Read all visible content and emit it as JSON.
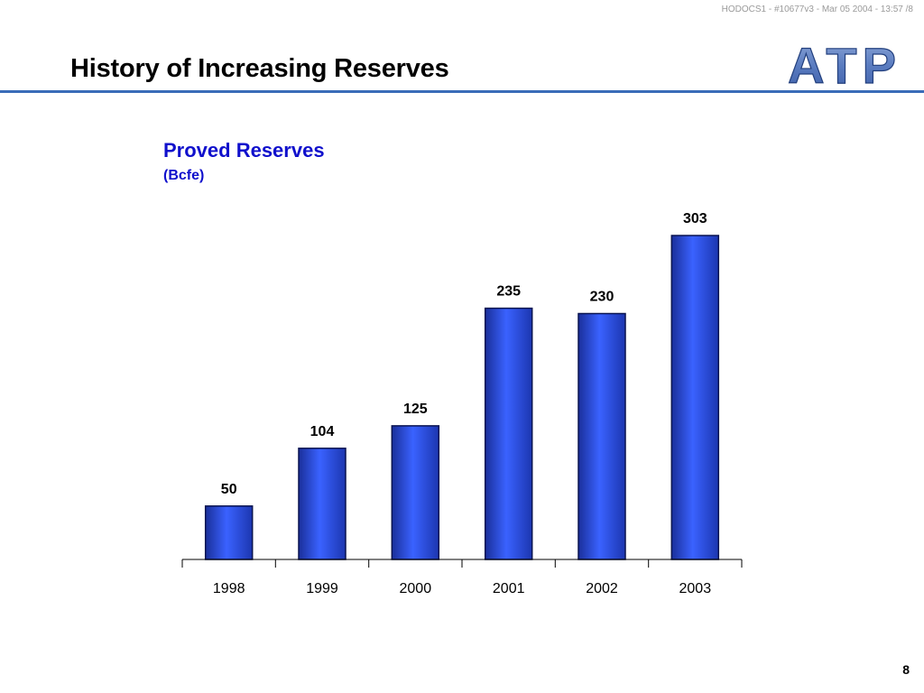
{
  "header": {
    "doc_ref": "HODOCS1 - #10677v3 - Mar 05 2004 - 13:57 /8",
    "title": "History of Increasing Reserves",
    "logo_text": "ATP"
  },
  "chart_data": {
    "type": "bar",
    "title": "Proved Reserves",
    "subtitle": "(Bcfe)",
    "categories": [
      "1998",
      "1999",
      "2000",
      "2001",
      "2002",
      "2003"
    ],
    "values": [
      50,
      104,
      125,
      235,
      230,
      303
    ],
    "ylim": [
      0,
      303
    ],
    "grid": false,
    "data_labels": true,
    "bar_color": "#2850f0",
    "bar_edge_color": "#0a1450"
  },
  "footer": {
    "page_number": "8"
  }
}
